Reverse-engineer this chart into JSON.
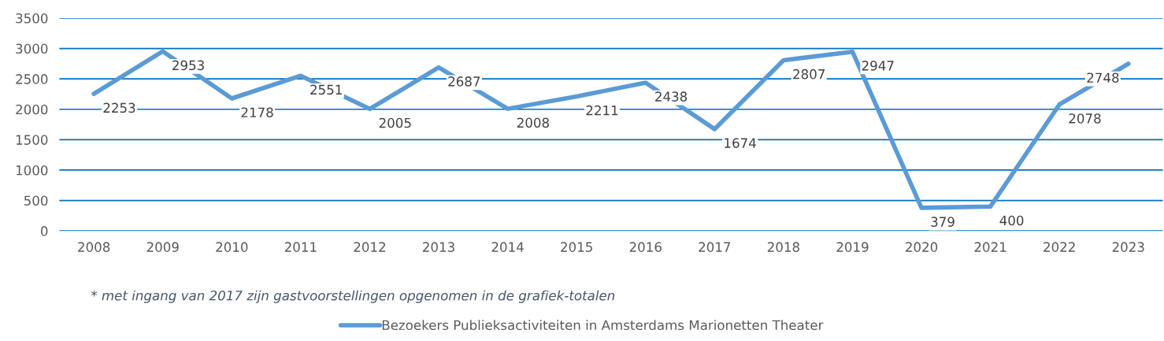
{
  "chart_data": {
    "type": "line",
    "categories": [
      "2008",
      "2009",
      "2010",
      "2011",
      "2012",
      "2013",
      "2014",
      "2015",
      "2016",
      "2017",
      "2018",
      "2019",
      "2020",
      "2021",
      "2022",
      "2023"
    ],
    "series": [
      {
        "name": "Bezoekers Publieksactiviteiten in Amsterdams Marionetten Theater",
        "color": "#5b9bd5",
        "values": [
          2253,
          2953,
          2178,
          2551,
          2005,
          2687,
          2008,
          2211,
          2438,
          1674,
          2807,
          2947,
          379,
          400,
          2078,
          2748
        ]
      }
    ],
    "ylim": [
      0,
      3500
    ],
    "yticks": [
      0,
      500,
      1000,
      1500,
      2000,
      2500,
      3000,
      3500
    ],
    "grid": "y",
    "legend": "bottom",
    "data_labels": true,
    "marker": "none",
    "line_style": "solid",
    "annotations": [
      "* met ingang van 2017 zijn gastvoorstellingen opgenomen in de grafiek-totalen"
    ]
  }
}
